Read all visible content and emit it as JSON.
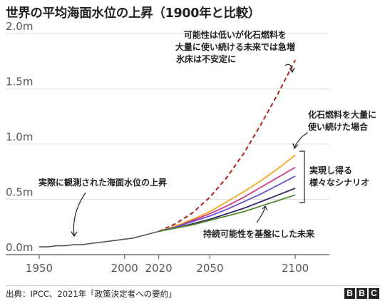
{
  "title": "世界の平均海面水位の上昇（1900年と比較）",
  "source": "出典：IPCC、2021年「政策決定者への要約」",
  "logo": [
    "B",
    "B",
    "C"
  ],
  "colors": {
    "observed": "#555555",
    "high_extreme": "#b51f1f",
    "scenario_1": "#f5a623",
    "scenario_2": "#d13b8a",
    "scenario_3": "#6b4fd1",
    "scenario_4": "#3a2a6e",
    "scenario_5": "#4c8a2c",
    "grid": "#e0e0e0",
    "axis": "#555555"
  },
  "chart_data": {
    "type": "line",
    "x_ticks": [
      1950,
      2000,
      2020,
      2050,
      2100
    ],
    "y_ticks": [
      {
        "value": 0.0,
        "label": "0.0m"
      },
      {
        "value": 0.5,
        "label": "0.5m"
      },
      {
        "value": 1.0,
        "label": "1.0m"
      },
      {
        "value": 1.5,
        "label": "1.5m"
      },
      {
        "value": 2.0,
        "label": "2.0m"
      }
    ],
    "xlim": [
      1950,
      2120
    ],
    "ylim": [
      0,
      2.0
    ],
    "grid": "horizontal",
    "observed": {
      "x": [
        1950,
        1955,
        1960,
        1965,
        1970,
        1975,
        1980,
        1985,
        1990,
        1995,
        2000,
        2005,
        2010,
        2015,
        2020
      ],
      "y": [
        0.07,
        0.07,
        0.08,
        0.08,
        0.09,
        0.09,
        0.1,
        0.11,
        0.12,
        0.13,
        0.14,
        0.15,
        0.17,
        0.19,
        0.21
      ]
    },
    "projections": [
      {
        "style": "dashed",
        "x": [
          2020,
          2030,
          2040,
          2050,
          2060,
          2070,
          2080,
          2090,
          2100
        ],
        "y": [
          0.21,
          0.28,
          0.38,
          0.52,
          0.7,
          0.92,
          1.18,
          1.46,
          1.76
        ]
      },
      {
        "style": "solid",
        "x": [
          2020,
          2030,
          2040,
          2050,
          2060,
          2070,
          2080,
          2090,
          2100
        ],
        "y": [
          0.21,
          0.26,
          0.32,
          0.39,
          0.48,
          0.57,
          0.67,
          0.78,
          0.9
        ]
      },
      {
        "style": "solid",
        "x": [
          2020,
          2030,
          2040,
          2050,
          2060,
          2070,
          2080,
          2090,
          2100
        ],
        "y": [
          0.21,
          0.25,
          0.31,
          0.37,
          0.44,
          0.52,
          0.61,
          0.7,
          0.79
        ]
      },
      {
        "style": "solid",
        "x": [
          2020,
          2030,
          2040,
          2050,
          2060,
          2070,
          2080,
          2090,
          2100
        ],
        "y": [
          0.21,
          0.25,
          0.3,
          0.35,
          0.41,
          0.48,
          0.55,
          0.63,
          0.71
        ]
      },
      {
        "style": "solid",
        "x": [
          2020,
          2030,
          2040,
          2050,
          2060,
          2070,
          2080,
          2090,
          2100
        ],
        "y": [
          0.21,
          0.24,
          0.28,
          0.32,
          0.37,
          0.42,
          0.48,
          0.54,
          0.6
        ]
      },
      {
        "style": "solid",
        "x": [
          2020,
          2030,
          2040,
          2050,
          2060,
          2070,
          2080,
          2090,
          2100
        ],
        "y": [
          0.21,
          0.24,
          0.27,
          0.31,
          0.35,
          0.39,
          0.44,
          0.49,
          0.54
        ]
      }
    ],
    "annotations": {
      "high_extreme": [
        "可能性は低いが化石燃料を",
        "大量に使い続ける未来では急増",
        "氷床は不安定に"
      ],
      "fossil_heavy": [
        "化石燃料を大量に",
        "使い続けた場合"
      ],
      "achievable": [
        "実現し得る",
        "様々なシナリオ"
      ],
      "sustainable": [
        "持続可能性を基盤にした未来"
      ],
      "observed": [
        "実際に観測された海面水位の上昇"
      ]
    }
  }
}
